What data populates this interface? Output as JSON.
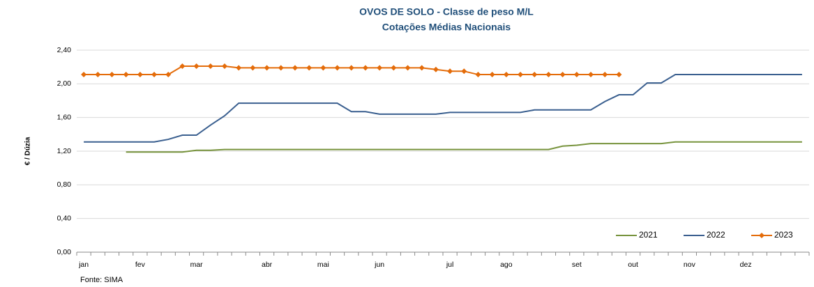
{
  "chart_data": {
    "type": "line",
    "title": "OVOS DE SOLO - Classe de peso M/L",
    "subtitle": "Cotações Médias Nacionais",
    "y_label": "€ / Dúzia",
    "source": "Fonte: SIMA",
    "categories": [
      "jan",
      null,
      null,
      null,
      "fev",
      null,
      null,
      null,
      "mar",
      null,
      null,
      null,
      null,
      "abr",
      null,
      null,
      null,
      "mai",
      null,
      null,
      null,
      "jun",
      null,
      null,
      null,
      null,
      "jul",
      null,
      null,
      null,
      "ago",
      null,
      null,
      null,
      null,
      "set",
      null,
      null,
      null,
      "out",
      null,
      null,
      null,
      "nov",
      null,
      null,
      null,
      "dez",
      null,
      null,
      null,
      null
    ],
    "ylim": [
      0,
      2.4
    ],
    "yticks": [
      {
        "value": 0,
        "label": "0,00"
      },
      {
        "value": 0.4,
        "label": "0,40"
      },
      {
        "value": 0.8,
        "label": "0,80"
      },
      {
        "value": 1.2,
        "label": "1,20"
      },
      {
        "value": 1.6,
        "label": "1,60"
      },
      {
        "value": 2.0,
        "label": "2,00"
      },
      {
        "value": 2.4,
        "label": "2,40"
      }
    ],
    "grid": true,
    "legend": "bottom-right",
    "series": [
      {
        "name": "2021",
        "color": "#77933c",
        "marker": false,
        "values": [
          null,
          null,
          null,
          1.19,
          1.19,
          1.19,
          1.19,
          1.19,
          1.21,
          1.21,
          1.22,
          1.22,
          1.22,
          1.22,
          1.22,
          1.22,
          1.22,
          1.22,
          1.22,
          1.22,
          1.22,
          1.22,
          1.22,
          1.22,
          1.22,
          1.22,
          1.22,
          1.22,
          1.22,
          1.22,
          1.22,
          1.22,
          1.22,
          1.22,
          1.26,
          1.27,
          1.29,
          1.29,
          1.29,
          1.29,
          1.29,
          1.29,
          1.31,
          1.31,
          1.31,
          1.31,
          1.31,
          1.31,
          1.31,
          1.31,
          1.31,
          1.31
        ]
      },
      {
        "name": "2022",
        "color": "#3a5f8f",
        "marker": false,
        "values": [
          1.31,
          1.31,
          1.31,
          1.31,
          1.31,
          1.31,
          1.34,
          1.39,
          1.39,
          1.51,
          1.62,
          1.77,
          1.77,
          1.77,
          1.77,
          1.77,
          1.77,
          1.77,
          1.77,
          1.67,
          1.67,
          1.64,
          1.64,
          1.64,
          1.64,
          1.64,
          1.66,
          1.66,
          1.66,
          1.66,
          1.66,
          1.66,
          1.69,
          1.69,
          1.69,
          1.69,
          1.69,
          1.79,
          1.87,
          1.87,
          2.01,
          2.01,
          2.11,
          2.11,
          2.11,
          2.11,
          2.11,
          2.11,
          2.11,
          2.11,
          2.11,
          2.11
        ]
      },
      {
        "name": "2023",
        "color": "#e46c0a",
        "marker": true,
        "values": [
          2.11,
          2.11,
          2.11,
          2.11,
          2.11,
          2.11,
          2.11,
          2.21,
          2.21,
          2.21,
          2.21,
          2.19,
          2.19,
          2.19,
          2.19,
          2.19,
          2.19,
          2.19,
          2.19,
          2.19,
          2.19,
          2.19,
          2.19,
          2.19,
          2.19,
          2.17,
          2.15,
          2.15,
          2.11,
          2.11,
          2.11,
          2.11,
          2.11,
          2.11,
          2.11,
          2.11,
          2.11,
          2.11,
          2.11,
          null,
          null,
          null,
          null,
          null,
          null,
          null,
          null,
          null,
          null,
          null,
          null,
          null
        ]
      }
    ]
  }
}
